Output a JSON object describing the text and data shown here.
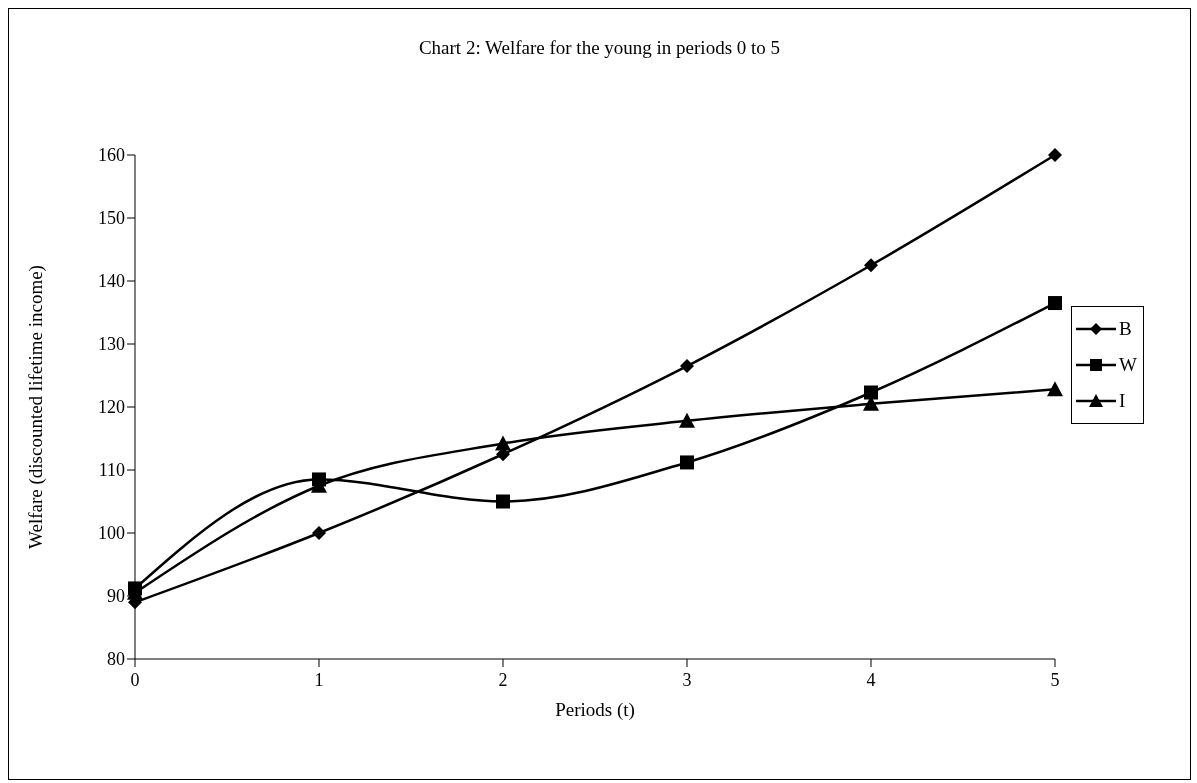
{
  "chart_data": {
    "type": "line",
    "title": "Chart 2: Welfare for the young in periods 0 to 5",
    "xlabel": "Periods (t)",
    "ylabel": "Welfare (discounted lifetime income)",
    "x": [
      0,
      1,
      2,
      3,
      4,
      5
    ],
    "series": [
      {
        "name": "B",
        "color": "#000000",
        "marker": "diamond",
        "values": [
          89,
          100,
          112.5,
          126.5,
          142.5,
          160
        ]
      },
      {
        "name": "W",
        "color": "#000000",
        "marker": "square",
        "values": [
          91.2,
          108.5,
          105,
          111.2,
          122.3,
          136.5
        ]
      },
      {
        "name": "I",
        "color": "#000000",
        "marker": "triangle",
        "values": [
          90.5,
          107.5,
          114.2,
          117.8,
          120.5,
          122.8
        ]
      }
    ],
    "xlim": [
      0,
      5
    ],
    "xticks": [
      0,
      1,
      2,
      3,
      4,
      5
    ],
    "ylim": [
      80,
      160
    ],
    "yticks": [
      80,
      90,
      100,
      110,
      120,
      130,
      140,
      150,
      160
    ],
    "grid": false,
    "legend": "right",
    "line_style": "solid"
  }
}
